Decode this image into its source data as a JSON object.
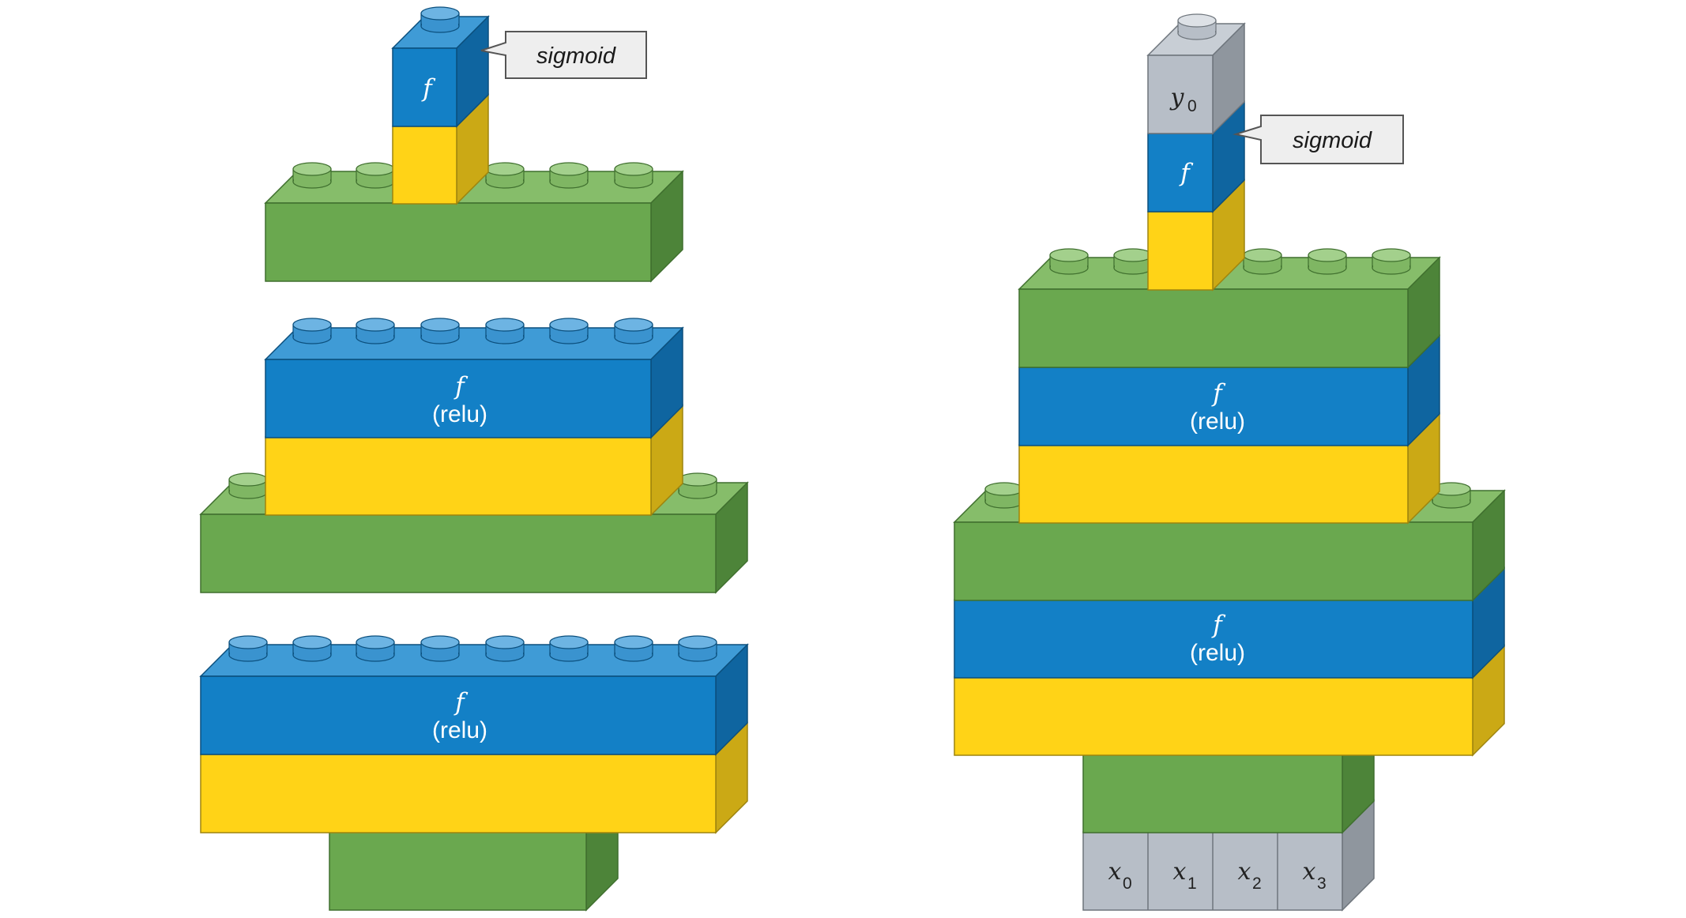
{
  "colors": {
    "green": "#6aa84f",
    "blue": "#1380c6",
    "yellow": "#ffd317",
    "gray": "#b7bec7"
  },
  "left_stack": {
    "top_neuron": {
      "label": "f",
      "callout": "sigmoid"
    },
    "middle_layer": {
      "label": "f",
      "activation": "(relu)"
    },
    "bottom_layer": {
      "label": "f",
      "activation": "(relu)"
    }
  },
  "right_model": {
    "output": {
      "var": "y",
      "sub": "0"
    },
    "top_neuron": {
      "label": "f",
      "callout": "sigmoid"
    },
    "hidden_layer_2": {
      "label": "f",
      "activation": "(relu)"
    },
    "hidden_layer_1": {
      "label": "f",
      "activation": "(relu)"
    },
    "inputs": [
      {
        "var": "x",
        "sub": "0"
      },
      {
        "var": "x",
        "sub": "1"
      },
      {
        "var": "x",
        "sub": "2"
      },
      {
        "var": "x",
        "sub": "3"
      }
    ]
  }
}
